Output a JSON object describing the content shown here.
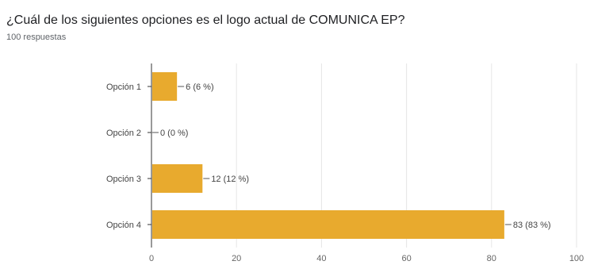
{
  "title": "¿Cuál de los siguientes opciones es el logo actual de COMUNICA EP?",
  "subtitle": "100 respuestas",
  "colors": {
    "bar": "#E8AA2E",
    "axis": "#333333",
    "grid": "#e6e6e6"
  },
  "chart_data": {
    "type": "bar",
    "orientation": "horizontal",
    "categories": [
      "Opción 1",
      "Opción 2",
      "Opción 3",
      "Opción 4"
    ],
    "values": [
      6,
      0,
      12,
      83
    ],
    "data_labels": [
      "6 (6 %)",
      "0 (0 %)",
      "12 (12 %)",
      "83 (83 %)"
    ],
    "xlim": [
      0,
      100
    ],
    "xticks": [
      0,
      20,
      40,
      60,
      80,
      100
    ],
    "grid": true,
    "legend": "none"
  }
}
